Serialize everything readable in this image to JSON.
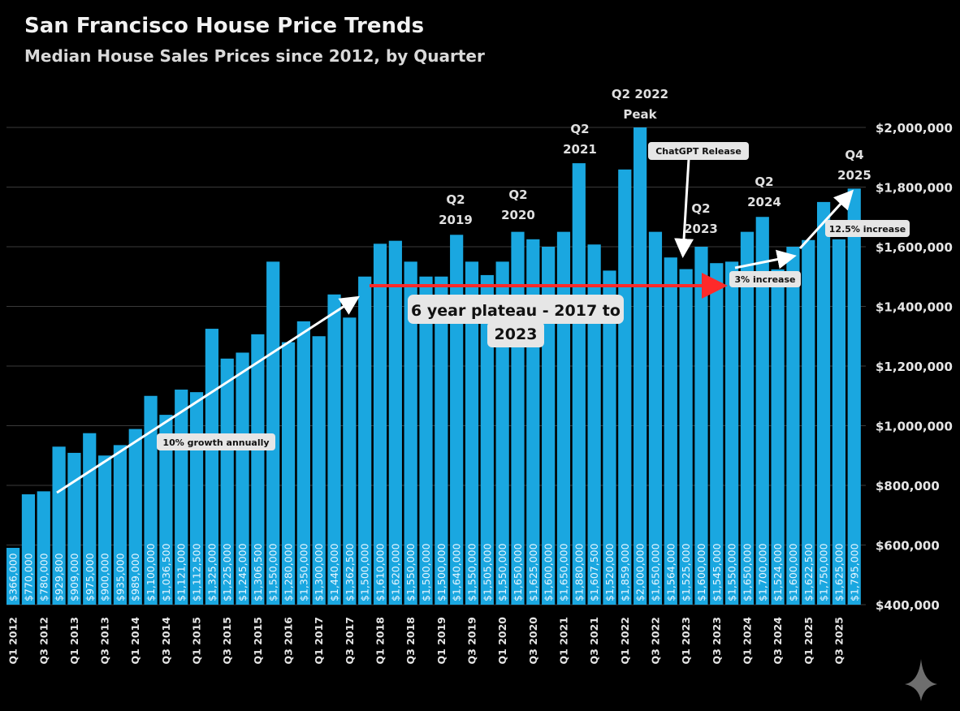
{
  "chart_data": {
    "type": "bar",
    "title": "San Francisco House Price Trends",
    "subtitle": "Median House Sales Prices since 2012, by Quarter",
    "xlabel": "",
    "ylabel": "",
    "ylim": [
      400000,
      2000000
    ],
    "grid": true,
    "bar_color": "#1aa7e0",
    "yticks": [
      "$400,000",
      "$600,000",
      "$800,000",
      "$1,000,000",
      "$1,200,000",
      "$1,400,000",
      "$1,600,000",
      "$1,800,000",
      "$2,000,000"
    ],
    "ytick_values": [
      400000,
      600000,
      800000,
      1000000,
      1200000,
      1400000,
      1600000,
      1800000,
      2000000
    ],
    "xtick_labels": [
      "Q1 2012",
      "Q3 2012",
      "Q1 2013",
      "Q3 2013",
      "Q1 2014",
      "Q3 2014",
      "Q1 2015",
      "Q3 2015",
      "Q1 2015",
      "Q3 2016",
      "Q1 2017",
      "Q3 2017",
      "Q1 2018",
      "Q3 2018",
      "Q1 2019",
      "Q3 2019",
      "Q1 2020",
      "Q3 2020",
      "Q1 2021",
      "Q3 2021",
      "Q1 2022",
      "Q3 2022",
      "Q1 2023",
      "Q3 2023",
      "Q1 2024",
      "Q3 2024",
      "Q1 2025",
      "Q3 2025"
    ],
    "values": [
      366000,
      770000,
      780000,
      929800,
      909000,
      975000,
      900000,
      935000,
      989000,
      1100000,
      1036500,
      1121000,
      1112500,
      1325000,
      1225000,
      1245000,
      1306500,
      1550000,
      1280000,
      1350000,
      1300000,
      1440000,
      1362500,
      1500000,
      1610000,
      1620000,
      1550000,
      1500000,
      1500000,
      1640000,
      1550000,
      1505000,
      1550000,
      1650000,
      1625000,
      1600000,
      1650000,
      1880000,
      1607500,
      1520000,
      1859000,
      2000000,
      1650000,
      1564000,
      1525000,
      1600000,
      1545000,
      1550000,
      1650000,
      1700000,
      1524000,
      1600000,
      1622500,
      1750000,
      1625000,
      1795000
    ],
    "value_labels": [
      "$366,000",
      "$770,000",
      "$780,000",
      "$929,800",
      "$909,000",
      "$975,000",
      "$900,000",
      "$935,000",
      "$989,000",
      "$1,100,000",
      "$1,036,500",
      "$1,121,000",
      "$1,112,500",
      "$1,325,000",
      "$1,225,000",
      "$1,245,000",
      "$1,306,500",
      "$1,550,000",
      "$1,280,000",
      "$1,350,000",
      "$1,300,000",
      "$1,440,000",
      "$1,362,500",
      "$1,500,000",
      "$1,610,000",
      "$1,620,000",
      "$1,550,000",
      "$1,500,000",
      "$1,500,000",
      "$1,640,000",
      "$1,550,000",
      "$1,505,000",
      "$1,550,000",
      "$1,650,000",
      "$1,625,000",
      "$1,600,000",
      "$1,650,000",
      "$1,880,000",
      "$1,607,500",
      "$1,520,000",
      "$1,859,000",
      "$2,000,000",
      "$1,650,000",
      "$1,564,000",
      "$1,525,000",
      "$1,600,000",
      "$1,545,000",
      "$1,550,000",
      "$1,650,000",
      "$1,700,000",
      "$1,524,000",
      "$1,600,000",
      "$1,622,500",
      "$1,750,000",
      "$1,625,000",
      "$1,795,000"
    ],
    "annotations": {
      "q2_2019": [
        "Q2",
        "2019"
      ],
      "q2_2020": [
        "Q2",
        "2020"
      ],
      "q2_2021": [
        "Q2",
        "2021"
      ],
      "q2_2022": [
        "Q2 2022",
        "Peak"
      ],
      "q2_2023": [
        "Q2",
        "2023"
      ],
      "q2_2024": [
        "Q2",
        "2024"
      ],
      "q4_2025": [
        "Q4",
        "2025"
      ],
      "chatgpt": "ChatGPT Release",
      "growth": "10% growth annually",
      "plateau": [
        "6 year plateau - 2017 to",
        "2023"
      ],
      "increase_3": "3% increase",
      "increase_12": "12.5% increase"
    },
    "colors": {
      "arrow_white": "#ffffff",
      "arrow_red": "#ff2a2a"
    }
  }
}
